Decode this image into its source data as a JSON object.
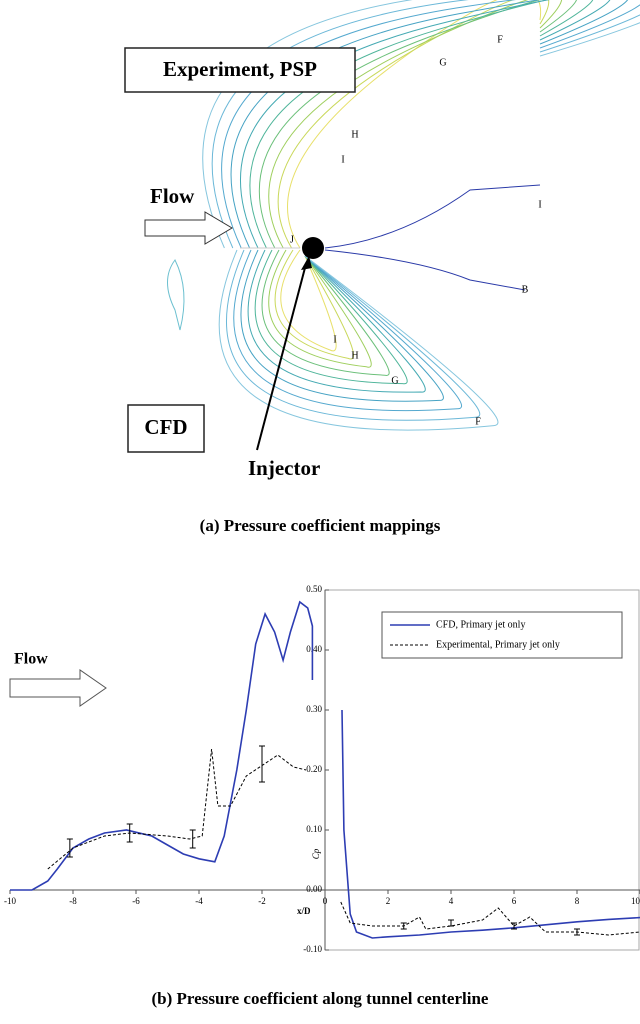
{
  "panel_a": {
    "experiment_label": "Experiment, PSP",
    "cfd_label": "CFD",
    "flow_label": "Flow",
    "injector_label": "Injector",
    "contour_labels": [
      "F",
      "G",
      "H",
      "I",
      "J",
      "I",
      "B",
      "I",
      "H",
      "G",
      "F"
    ],
    "caption": "(a) Pressure coefficient mappings"
  },
  "chart_data": {
    "type": "line",
    "title": "(b) Pressure coefficient along tunnel centerline",
    "annotation": "Flow",
    "x_label": "x/D",
    "y_label": "Cp",
    "xlim": [
      -10,
      10
    ],
    "ylim": [
      -0.1,
      0.5
    ],
    "xticks": [
      -10,
      -8,
      -6,
      -4,
      -2,
      0,
      2,
      4,
      6,
      8,
      10
    ],
    "yticks": [
      {
        "value": -0.1,
        "label": "-0.10"
      },
      {
        "value": 0,
        "label": "0.00"
      },
      {
        "value": 0.1,
        "label": "0.10"
      },
      {
        "value": 0.2,
        "label": "0.20"
      },
      {
        "value": 0.3,
        "label": "0.30"
      },
      {
        "value": 0.4,
        "label": "0.40"
      },
      {
        "value": 0.5,
        "label": "0.50"
      }
    ],
    "legend": "upper right",
    "series": [
      {
        "name": "CFD, Primary jet only",
        "color": "#2d3db3",
        "dash": false,
        "x": [
          -10,
          -9.3,
          -8.8,
          -8.5,
          -8,
          -7.5,
          -7,
          -6.3,
          -5.5,
          -5,
          -4.5,
          -4,
          -3.5,
          -3.2,
          -2.8,
          -2.5,
          -2.2,
          -1.9,
          -1.6,
          -1.33,
          -1.1,
          -0.8,
          -0.55,
          -0.4,
          -0.4,
          0,
          0.54,
          0.6,
          0.8,
          1.0,
          1.5,
          2,
          3,
          4,
          5,
          6,
          7,
          8,
          9,
          10
        ],
        "values": [
          0,
          0,
          0.015,
          0.035,
          0.07,
          0.085,
          0.095,
          0.1,
          0.09,
          0.075,
          0.06,
          0.052,
          0.047,
          0.09,
          0.2,
          0.3,
          0.41,
          0.46,
          0.43,
          0.383,
          0.43,
          0.48,
          0.47,
          0.44,
          0.35,
          null,
          0.3,
          0.1,
          -0.04,
          -0.07,
          -0.08,
          -0.078,
          -0.075,
          -0.07,
          -0.067,
          -0.063,
          -0.058,
          -0.053,
          -0.049,
          -0.046
        ]
      },
      {
        "name": "Experimental, Primary jet only",
        "color": "#000000",
        "dash": true,
        "x": [
          -8.8,
          -8,
          -7,
          -6.2,
          -5,
          -4.3,
          -3.9,
          -3.6,
          -3.4,
          -3,
          -2.5,
          -1.5,
          -1,
          -0.6,
          0,
          0.5,
          0.8,
          1.5,
          2.5,
          3,
          3.2,
          4,
          5,
          5.5,
          6,
          6.5,
          7,
          8,
          9,
          10
        ],
        "values": [
          0.035,
          0.07,
          0.09,
          0.095,
          0.09,
          0.085,
          0.09,
          0.235,
          0.14,
          0.14,
          0.19,
          0.225,
          0.205,
          0.2,
          null,
          -0.02,
          -0.055,
          -0.06,
          -0.06,
          -0.045,
          -0.065,
          -0.06,
          -0.05,
          -0.03,
          -0.06,
          -0.045,
          -0.07,
          -0.07,
          -0.075,
          -0.07
        ]
      }
    ],
    "error_bars": {
      "x": [
        -8.1,
        -6.2,
        -4.2,
        -2,
        2.5,
        4,
        6,
        8
      ],
      "values": [
        0.07,
        0.095,
        0.085,
        0.21,
        -0.06,
        -0.055,
        -0.06,
        -0.07
      ],
      "errors": [
        0.015,
        0.015,
        0.015,
        0.03,
        0.005,
        0.005,
        0.005,
        0.005
      ]
    }
  }
}
